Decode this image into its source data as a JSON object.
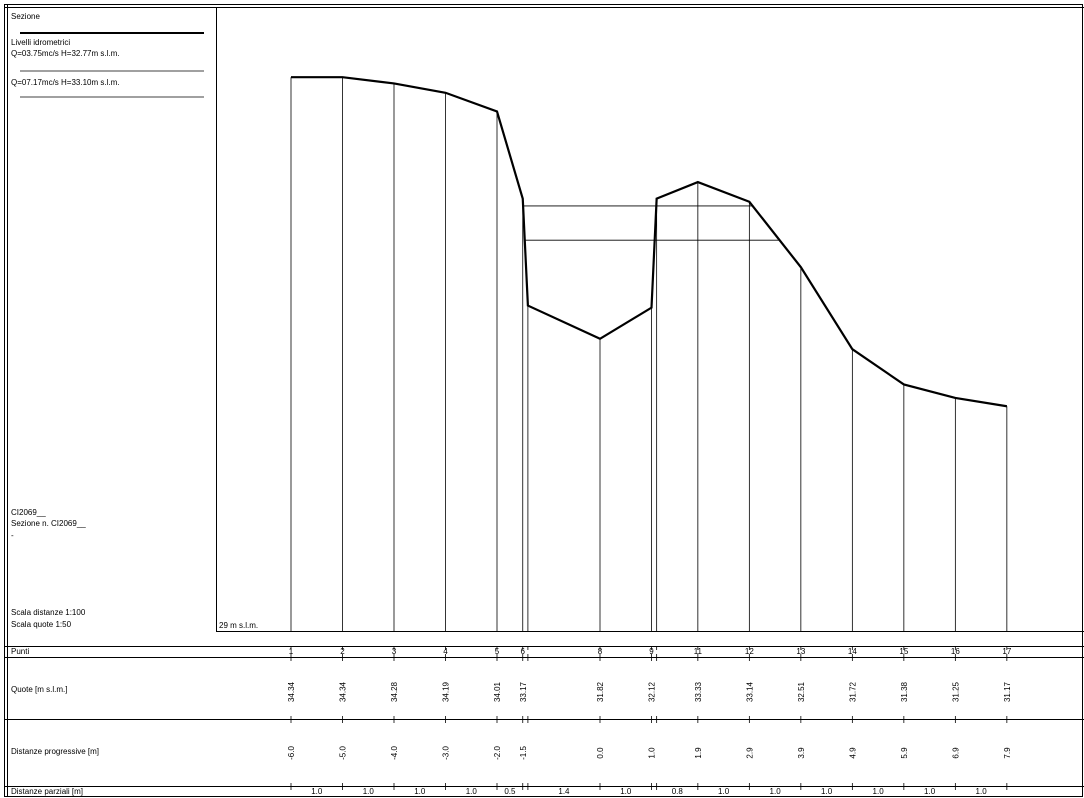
{
  "legend": {
    "title": "Sezione",
    "levels_heading": "Livelli idrometrici",
    "levels": [
      {
        "text": "Q=03.75mc/s  H=32.77m s.l.m.",
        "h": 32.77
      },
      {
        "text": "Q=07.17mc/s  H=33.10m s.l.m.",
        "h": 33.1
      }
    ]
  },
  "info": {
    "code": "CI2069__",
    "section": "Sezione n. CI2069__",
    "note": "-",
    "scale_dist": "Scala distanze 1:100",
    "scale_quote": "Scala quote   1:50"
  },
  "datum_label": "29 m s.l.m.",
  "rows": {
    "punti": "Punti",
    "quote": "Quote [m s.l.m.]",
    "progressive": "Distanze progressive [m]",
    "parziali": "Distanze parziali [m]"
  },
  "chart_data": {
    "type": "line",
    "datum": 29,
    "points": [
      {
        "id": "1",
        "dist": -6.0,
        "z": 34.34,
        "dist_label": "-6.0",
        "z_label": "34.34"
      },
      {
        "id": "2",
        "dist": -5.0,
        "z": 34.34,
        "dist_label": "-5.0",
        "z_label": "34.34"
      },
      {
        "id": "3",
        "dist": -4.0,
        "z": 34.28,
        "dist_label": "-4.0",
        "z_label": "34.28"
      },
      {
        "id": "4",
        "dist": -3.0,
        "z": 34.19,
        "dist_label": "-3.0",
        "z_label": "34.19"
      },
      {
        "id": "5",
        "dist": -2.0,
        "z": 34.01,
        "dist_label": "-2.0",
        "z_label": "34.01"
      },
      {
        "id": "6",
        "dist": -1.5,
        "z": 33.17,
        "dist_label": "-1.5",
        "z_label": "33.17"
      },
      {
        "id": "",
        "dist": -1.4,
        "z": 32.14,
        "dist_label": "",
        "z_label": ""
      },
      {
        "id": "8",
        "dist": 0.0,
        "z": 31.82,
        "dist_label": "0.0",
        "z_label": "31.82"
      },
      {
        "id": "9",
        "dist": 1.0,
        "z": 32.12,
        "dist_label": "1.0",
        "z_label": "32.12"
      },
      {
        "id": "",
        "dist": 1.1,
        "z": 33.17,
        "dist_label": "",
        "z_label": ""
      },
      {
        "id": "11",
        "dist": 1.9,
        "z": 33.33,
        "dist_label": "1.9",
        "z_label": "33.33"
      },
      {
        "id": "12",
        "dist": 2.9,
        "z": 33.14,
        "dist_label": "2.9",
        "z_label": "33.14"
      },
      {
        "id": "13",
        "dist": 3.9,
        "z": 32.51,
        "dist_label": "3.9",
        "z_label": "32.51"
      },
      {
        "id": "14",
        "dist": 4.9,
        "z": 31.72,
        "dist_label": "4.9",
        "z_label": "31.72"
      },
      {
        "id": "15",
        "dist": 5.9,
        "z": 31.38,
        "dist_label": "5.9",
        "z_label": "31.38"
      },
      {
        "id": "16",
        "dist": 6.9,
        "z": 31.25,
        "dist_label": "6.9",
        "z_label": "31.25"
      },
      {
        "id": "17",
        "dist": 7.9,
        "z": 31.17,
        "dist_label": "7.9",
        "z_label": "31.17"
      }
    ],
    "partials": [
      {
        "from": -6.0,
        "to": -5.0,
        "label": "1.0"
      },
      {
        "from": -5.0,
        "to": -4.0,
        "label": "1.0"
      },
      {
        "from": -4.0,
        "to": -3.0,
        "label": "1.0"
      },
      {
        "from": -3.0,
        "to": -2.0,
        "label": "1.0"
      },
      {
        "from": -2.0,
        "to": -1.5,
        "label": "0.5"
      },
      {
        "from": -1.4,
        "to": 0.0,
        "label": "1.4"
      },
      {
        "from": 0.0,
        "to": 1.0,
        "label": "1.0"
      },
      {
        "from": 1.1,
        "to": 1.9,
        "label": "0.8"
      },
      {
        "from": 1.9,
        "to": 2.9,
        "label": "1.0"
      },
      {
        "from": 2.9,
        "to": 3.9,
        "label": "1.0"
      },
      {
        "from": 3.9,
        "to": 4.9,
        "label": "1.0"
      },
      {
        "from": 4.9,
        "to": 5.9,
        "label": "1.0"
      },
      {
        "from": 5.9,
        "to": 6.9,
        "label": "1.0"
      },
      {
        "from": 6.9,
        "to": 7.9,
        "label": "1.0"
      }
    ]
  }
}
